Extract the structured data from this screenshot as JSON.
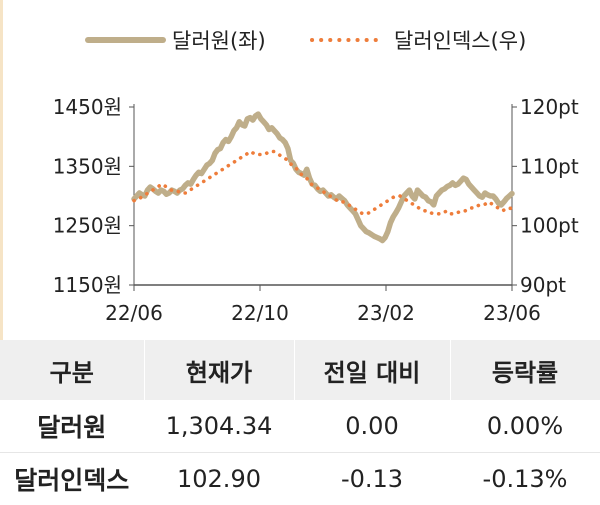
{
  "chart_data": {
    "type": "line",
    "legend_position": "top",
    "x_ticks": [
      "22/06",
      "22/10",
      "23/02",
      "23/06"
    ],
    "y_left": {
      "ticks": [
        "1450원",
        "1350원",
        "1250원",
        "1150원"
      ],
      "range": [
        1150,
        1450
      ]
    },
    "y_right": {
      "ticks": [
        "120pt",
        "110pt",
        "100pt",
        "90pt"
      ],
      "range": [
        90,
        120
      ]
    },
    "series": [
      {
        "name": "달러원(좌)",
        "axis": "left",
        "color": "#bfae8a",
        "style": "solid",
        "values": [
          1295,
          1300,
          1305,
          1302,
          1300,
          1310,
          1315,
          1312,
          1308,
          1305,
          1310,
          1308,
          1303,
          1305,
          1310,
          1308,
          1305,
          1310,
          1312,
          1318,
          1322,
          1320,
          1328,
          1335,
          1340,
          1338,
          1345,
          1352,
          1355,
          1360,
          1372,
          1378,
          1380,
          1390,
          1395,
          1392,
          1400,
          1410,
          1415,
          1425,
          1420,
          1418,
          1430,
          1432,
          1428,
          1435,
          1438,
          1430,
          1425,
          1420,
          1412,
          1415,
          1410,
          1405,
          1398,
          1395,
          1390,
          1380,
          1360,
          1355,
          1345,
          1340,
          1338,
          1335,
          1345,
          1330,
          1320,
          1318,
          1312,
          1308,
          1310,
          1305,
          1300,
          1302,
          1298,
          1295,
          1300,
          1296,
          1292,
          1285,
          1280,
          1275,
          1270,
          1260,
          1250,
          1245,
          1240,
          1238,
          1235,
          1232,
          1230,
          1228,
          1225,
          1230,
          1240,
          1255,
          1265,
          1272,
          1280,
          1290,
          1300,
          1305,
          1310,
          1300,
          1295,
          1310,
          1305,
          1300,
          1298,
          1292,
          1290,
          1285,
          1300,
          1305,
          1310,
          1312,
          1316,
          1318,
          1322,
          1318,
          1320,
          1325,
          1330,
          1328,
          1320,
          1315,
          1310,
          1305,
          1300,
          1298,
          1305,
          1302,
          1300,
          1300,
          1295,
          1288,
          1285,
          1290,
          1296,
          1300,
          1304
        ]
      },
      {
        "name": "달러인덱스(우)",
        "axis": "right",
        "color": "#ee7d3b",
        "style": "dotted",
        "values": [
          104.2,
          104.5,
          105,
          105.5,
          106,
          106.5,
          107,
          106.5,
          106,
          106,
          105.5,
          105.5,
          106,
          106.5,
          107,
          107.5,
          108,
          108.5,
          109,
          109.5,
          110,
          110.5,
          111,
          111.5,
          112,
          112.5,
          112,
          112,
          112,
          112.5,
          112.5,
          112,
          111.5,
          111,
          110,
          109.5,
          108.5,
          108,
          107,
          106.5,
          106,
          105.5,
          105,
          104.5,
          104,
          104,
          103.5,
          103,
          102.5,
          102,
          102,
          102.5,
          103,
          103.5,
          104,
          104.5,
          105,
          105,
          104.5,
          104,
          103.5,
          103,
          102.5,
          102.5,
          102,
          102,
          102,
          102.5,
          102,
          102,
          102.5,
          102.5,
          103,
          103,
          103.5,
          103.5,
          104,
          103.5,
          103,
          102.5,
          103,
          102.9
        ]
      }
    ],
    "table": {
      "headers": [
        "구분",
        "현재가",
        "전일 대비",
        "등락률"
      ],
      "rows": [
        [
          "달러원",
          "1,304.34",
          "0.00",
          "0.00%"
        ],
        [
          "달러인덱스",
          "102.90",
          "-0.13",
          "-0.13%"
        ]
      ]
    }
  }
}
